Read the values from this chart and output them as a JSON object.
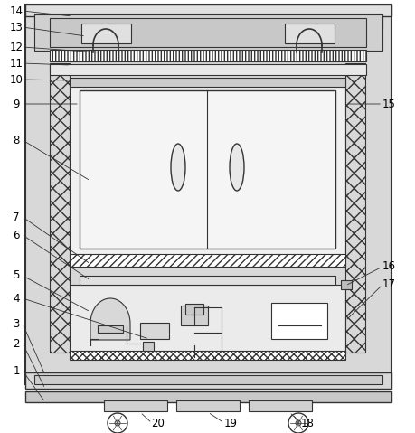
{
  "bg_color": "#ffffff",
  "line_color": "#333333",
  "label_color": "#000000",
  "fig_w": 4.59,
  "fig_h": 4.79,
  "dpi": 100
}
